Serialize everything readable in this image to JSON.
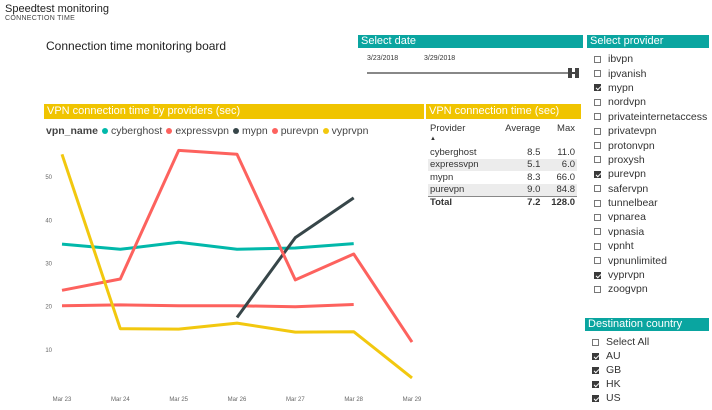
{
  "app": {
    "title": "Speedtest monitoring",
    "subtitle": "CONNECTION TIME"
  },
  "board_title": "Connection time monitoring board",
  "date_slicer": {
    "title": "Select date",
    "start": "3/23/2018",
    "end": "3/29/2018"
  },
  "provider_slicer": {
    "title": "Select provider",
    "items": [
      {
        "label": "ibvpn",
        "checked": false
      },
      {
        "label": "ipvanish",
        "checked": false
      },
      {
        "label": "mypn",
        "checked": true
      },
      {
        "label": "nordvpn",
        "checked": false
      },
      {
        "label": "privateinternetaccess",
        "checked": false
      },
      {
        "label": "privatevpn",
        "checked": false
      },
      {
        "label": "protonvpn",
        "checked": false
      },
      {
        "label": "proxysh",
        "checked": false
      },
      {
        "label": "purevpn",
        "checked": true
      },
      {
        "label": "safervpn",
        "checked": false
      },
      {
        "label": "tunnelbear",
        "checked": false
      },
      {
        "label": "vpnarea",
        "checked": false
      },
      {
        "label": "vpnasia",
        "checked": false
      },
      {
        "label": "vpnht",
        "checked": false
      },
      {
        "label": "vpnunlimited",
        "checked": false
      },
      {
        "label": "vyprvpn",
        "checked": true
      },
      {
        "label": "zoogvpn",
        "checked": false
      }
    ]
  },
  "country_slicer": {
    "title": "Destination country",
    "items": [
      {
        "label": "Select All",
        "checked": false
      },
      {
        "label": "AU",
        "checked": true
      },
      {
        "label": "GB",
        "checked": true
      },
      {
        "label": "HK",
        "checked": true
      },
      {
        "label": "US",
        "checked": true
      }
    ]
  },
  "table": {
    "title": "VPN connection time (sec)",
    "headers": {
      "provider": "Provider",
      "average": "Average",
      "max": "Max"
    },
    "sort_indicator": "▲",
    "rows": [
      {
        "provider": "cyberghost",
        "average": "8.5",
        "max": "11.0"
      },
      {
        "provider": "expressvpn",
        "average": "5.1",
        "max": "6.0"
      },
      {
        "provider": "mypn",
        "average": "8.3",
        "max": "66.0"
      },
      {
        "provider": "purevpn",
        "average": "9.0",
        "max": "84.8"
      }
    ],
    "total": {
      "label": "Total",
      "average": "7.2",
      "max": "128.0"
    }
  },
  "chart_data": {
    "type": "line",
    "title": "VPN connection time by providers (sec)",
    "legend_title": "vpn_name",
    "legend_position": "top-left",
    "x": [
      "Mar 23",
      "Mar 24",
      "Mar 25",
      "Mar 26",
      "Mar 27",
      "Mar 28",
      "Mar 29"
    ],
    "ylim": [
      0,
      60
    ],
    "yticks": [
      10,
      20,
      30,
      40,
      50
    ],
    "grid": false,
    "series": [
      {
        "name": "cyberghost",
        "color": "#01b8aa",
        "values": [
          34.5,
          33.3,
          34.9,
          33.3,
          33.6,
          34.6,
          null
        ]
      },
      {
        "name": "expressvpn",
        "color": "#374649",
        "values": [
          20.2,
          20.4,
          20.2,
          20.2,
          20.0,
          20.5,
          null
        ],
        "render_color": "#fd625e"
      },
      {
        "name": "mypn",
        "color": "#374649",
        "values": [
          null,
          null,
          null,
          17.5,
          36.0,
          45.2,
          null
        ]
      },
      {
        "name": "purevpn",
        "color": "#fd625e",
        "values": [
          23.8,
          26.4,
          56.2,
          55.3,
          26.2,
          32.2,
          11.8
        ]
      },
      {
        "name": "vyprvpn",
        "color": "#f2c80f",
        "values": [
          55.3,
          14.9,
          14.8,
          16.2,
          14.1,
          14.2,
          3.5
        ]
      }
    ],
    "legend": [
      {
        "name": "cyberghost",
        "color": "#01b8aa"
      },
      {
        "name": "expressvpn",
        "color": "#fd625e"
      },
      {
        "name": "mypn",
        "color": "#374649"
      },
      {
        "name": "purevpn",
        "color": "#fd625e"
      },
      {
        "name": "vyprvpn",
        "color": "#f2c80f"
      }
    ]
  }
}
